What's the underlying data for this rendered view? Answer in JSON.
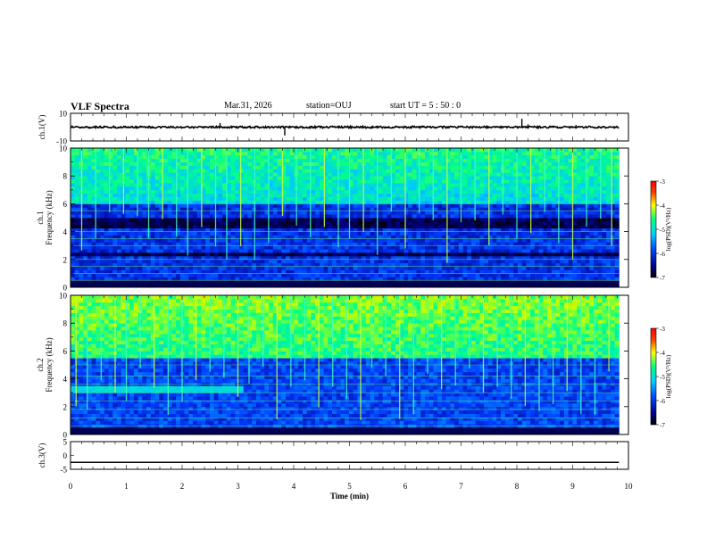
{
  "header": {
    "title": "VLF Spectra",
    "date": "Mar.31, 2026",
    "station": "station=OUJ",
    "start": "start  UT =  5 : 50 : 0"
  },
  "chart_data": {
    "type": "spectrogram",
    "x_axis": {
      "label": "Time  (min)",
      "range": [
        0,
        10
      ],
      "ticks": [
        "0",
        "1",
        "2",
        "3",
        "4",
        "5",
        "6",
        "7",
        "8",
        "9",
        "10"
      ],
      "data_end_min": 9.83
    },
    "panels": [
      {
        "id": "ch1",
        "type": "line",
        "ylabel": "ch.1(V)",
        "yrange": [
          -10,
          10
        ],
        "ytick_labels": [
          "10",
          "-10"
        ],
        "baseline_V": 0,
        "spikes": [
          {
            "t_min": 2.68,
            "amp_V": 3
          },
          {
            "t_min": 3.84,
            "amp_V": -6
          },
          {
            "t_min": 8.09,
            "amp_V": 6
          },
          {
            "t_min": 8.2,
            "amp_V": 2
          },
          {
            "t_min": 9.06,
            "amp_V": 1.5
          }
        ]
      },
      {
        "id": "ch1_spec",
        "type": "heatmap",
        "ylabel": "ch.1  Frequency (kHz)",
        "yrange_kHz": [
          0,
          10
        ],
        "ytick_labels": [
          "0",
          "2",
          "4",
          "6",
          "8",
          "10"
        ],
        "colorbar": {
          "label": "log(PSD)(V²/Hz)",
          "range": [
            -7,
            -3
          ],
          "ticks": [
            "-3",
            "-4",
            "-5",
            "-6",
            "-7"
          ]
        },
        "noise_floor_log": -6.3,
        "upper_band": {
          "from_kHz": 6.0,
          "to_kHz": 10,
          "level_log": -5.0
        },
        "dark_bands_kHz": [
          [
            2.2,
            2.6
          ],
          [
            4.3,
            5.0
          ]
        ],
        "hum_lines_kHz": [
          0.5,
          1.0,
          1.5,
          2.0,
          3.0,
          3.5,
          4.0,
          5.5
        ],
        "sferic_times_min": [
          0.2,
          0.45,
          0.7,
          0.95,
          1.2,
          1.4,
          1.65,
          1.9,
          2.1,
          2.35,
          2.6,
          2.8,
          3.05,
          3.3,
          3.55,
          3.8,
          4.05,
          4.3,
          4.55,
          4.8,
          5.0,
          5.25,
          5.5,
          5.75,
          6.0,
          6.25,
          6.5,
          6.75,
          7.0,
          7.25,
          7.5,
          7.75,
          8.0,
          8.25,
          8.5,
          8.75,
          9.0,
          9.25,
          9.5,
          9.7
        ]
      },
      {
        "id": "ch2_spec",
        "type": "heatmap",
        "ylabel": "ch.2  Frequency (kHz)",
        "yrange_kHz": [
          0,
          10
        ],
        "ytick_labels": [
          "0",
          "2",
          "4",
          "6",
          "8",
          "10"
        ],
        "colorbar": {
          "label": "log(PSD)(V²/Hz)",
          "range": [
            -7,
            -3
          ],
          "ticks": [
            "-3",
            "-4",
            "-5",
            "-6",
            "-7"
          ]
        },
        "noise_floor_log": -6.2,
        "upper_band": {
          "from_kHz": 5.5,
          "to_kHz": 10,
          "level_log": -4.6
        },
        "early_band": {
          "from_kHz": 3.0,
          "to_kHz": 3.6,
          "until_min": 3.1,
          "level_log": -5.4
        },
        "hum_lines_kHz": [
          0.6,
          1.2,
          1.8,
          2.4,
          3.0,
          3.6,
          4.2,
          5.0
        ],
        "sferic_times_min": [
          0.1,
          0.3,
          0.55,
          0.8,
          1.0,
          1.25,
          1.5,
          1.75,
          2.0,
          2.25,
          2.5,
          2.75,
          3.0,
          3.2,
          3.45,
          3.7,
          3.95,
          4.2,
          4.45,
          4.7,
          4.95,
          5.2,
          5.4,
          5.65,
          5.9,
          6.15,
          6.4,
          6.65,
          6.9,
          7.15,
          7.4,
          7.65,
          7.9,
          8.15,
          8.4,
          8.65,
          8.9,
          9.15,
          9.4,
          9.65
        ]
      },
      {
        "id": "ch3",
        "type": "line",
        "ylabel": "ch.3(V)",
        "yrange": [
          -5,
          5
        ],
        "ytick_labels": [
          "5",
          "0",
          "-5"
        ],
        "constant_V": -2.5
      }
    ]
  }
}
